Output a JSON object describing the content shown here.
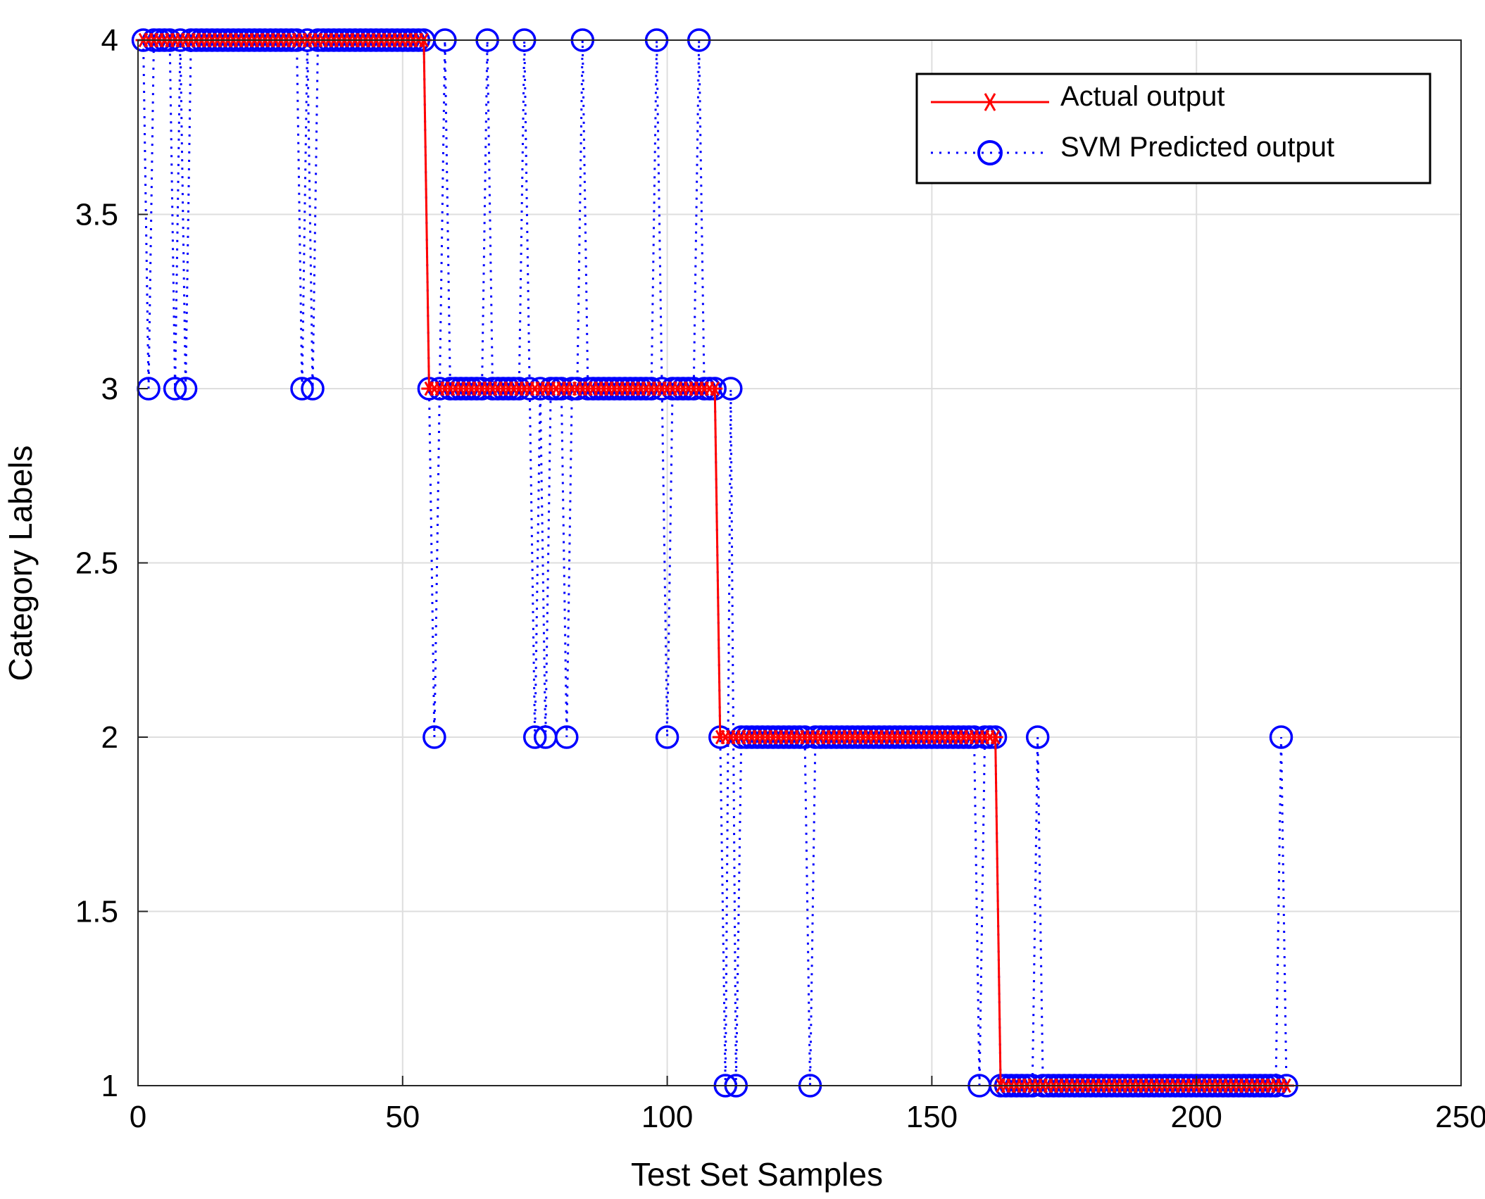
{
  "chart_data": {
    "type": "line",
    "title": "",
    "xlabel": "Test Set Samples",
    "ylabel": "Category Labels",
    "xlim": [
      0,
      250
    ],
    "ylim": [
      1,
      4
    ],
    "xticks": [
      "0",
      "50",
      "100",
      "150",
      "200",
      "250"
    ],
    "yticks": [
      "1",
      "1.5",
      "2",
      "2.5",
      "3",
      "3.5",
      "4"
    ],
    "grid": true,
    "legend_position": "top-right",
    "series": [
      {
        "name": "Actual output",
        "color": "#ff0000",
        "style": "solid",
        "marker": "asterisk",
        "segments": [
          {
            "from": 1,
            "to": 54,
            "value": 4
          },
          {
            "from": 55,
            "to": 109,
            "value": 3
          },
          {
            "from": 110,
            "to": 162,
            "value": 2
          },
          {
            "from": 163,
            "to": 217,
            "value": 1
          }
        ]
      },
      {
        "name": "SVM Predicted output",
        "color": "#0000ff",
        "style": "dotted",
        "marker": "circle",
        "base_segments": [
          {
            "from": 1,
            "to": 54,
            "value": 4
          },
          {
            "from": 55,
            "to": 109,
            "value": 3
          },
          {
            "from": 110,
            "to": 162,
            "value": 2
          },
          {
            "from": 163,
            "to": 217,
            "value": 1
          }
        ],
        "misclassified": [
          {
            "x": 2,
            "y": 3
          },
          {
            "x": 7,
            "y": 3
          },
          {
            "x": 9,
            "y": 3
          },
          {
            "x": 31,
            "y": 3
          },
          {
            "x": 33,
            "y": 3
          },
          {
            "x": 56,
            "y": 2
          },
          {
            "x": 58,
            "y": 4
          },
          {
            "x": 66,
            "y": 4
          },
          {
            "x": 73,
            "y": 4
          },
          {
            "x": 75,
            "y": 2
          },
          {
            "x": 77,
            "y": 2
          },
          {
            "x": 81,
            "y": 2
          },
          {
            "x": 84,
            "y": 4
          },
          {
            "x": 98,
            "y": 4
          },
          {
            "x": 100,
            "y": 2
          },
          {
            "x": 106,
            "y": 4
          },
          {
            "x": 111,
            "y": 1
          },
          {
            "x": 112,
            "y": 3
          },
          {
            "x": 113,
            "y": 1
          },
          {
            "x": 127,
            "y": 1
          },
          {
            "x": 159,
            "y": 1
          },
          {
            "x": 170,
            "y": 2
          },
          {
            "x": 216,
            "y": 2
          }
        ]
      }
    ]
  }
}
